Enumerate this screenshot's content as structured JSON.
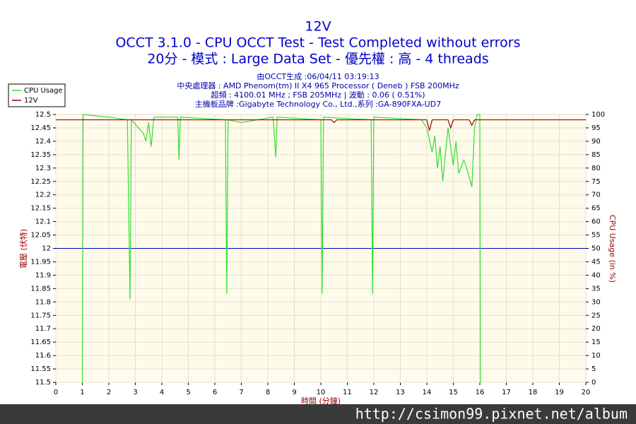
{
  "chart_data": {
    "type": "line",
    "title": "12V",
    "subtitle": [
      "OCCT 3.1.0 - CPU OCCT Test - Test Completed without errors",
      "20分 - 模式 : Large Data Set - 優先權 : 高 - 4 threads"
    ],
    "info": [
      "由OCCT生成 :06/04/11 03:19:13",
      "中央處理器 : AMD Phenom(tm) II X4 965 Processor ( Deneb ) FSB 200MHz",
      "超頻 : 4100.01 MHz ; FSB 205MHz | 波動 : 0.06 ( 0.51%)",
      "主機板品牌 :Gigabyte Technology Co., Ltd.,系列 :GA-890FXA-UD7"
    ],
    "ylabel": "電壓 (伏特)",
    "y2label": "CPU Usage (in %)",
    "xlabel": "時間 (分鐘)",
    "xlim": [
      0,
      20
    ],
    "xticks": [
      0,
      1,
      2,
      3,
      4,
      5,
      6,
      7,
      8,
      9,
      10,
      11,
      12,
      13,
      14,
      15,
      16,
      17,
      18,
      19,
      20
    ],
    "ylim": [
      11.5,
      12.5
    ],
    "yticks": [
      11.5,
      11.55,
      11.6,
      11.65,
      11.7,
      11.75,
      11.8,
      11.85,
      11.9,
      11.95,
      12,
      12.05,
      12.1,
      12.15,
      12.2,
      12.25,
      12.3,
      12.35,
      12.4,
      12.45,
      12.5
    ],
    "y2lim": [
      0,
      100
    ],
    "y2ticks": [
      0,
      5,
      10,
      15,
      20,
      25,
      30,
      35,
      40,
      45,
      50,
      55,
      60,
      65,
      70,
      75,
      80,
      85,
      90,
      95,
      100
    ],
    "reference_line": {
      "value": 12,
      "color": "#0000cc"
    },
    "grid": true,
    "legend": "top-left",
    "series": [
      {
        "name": "CPU Usage",
        "color": "#33dd33",
        "axis": "y2",
        "x": [
          1.0,
          1.03,
          2.0,
          2.7,
          2.8,
          2.85,
          3.3,
          3.4,
          3.5,
          3.6,
          3.7,
          4.6,
          4.65,
          4.7,
          6.4,
          6.45,
          6.5,
          7.0,
          8.2,
          8.3,
          8.35,
          10.0,
          10.05,
          10.1,
          11.9,
          11.95,
          12.0,
          13.8,
          14.0,
          14.2,
          14.3,
          14.4,
          14.5,
          14.6,
          14.8,
          15.0,
          15.1,
          15.2,
          15.4,
          15.5,
          15.7,
          15.8,
          15.9,
          16.0,
          16.02
        ],
        "values": [
          0,
          100,
          99,
          98,
          31,
          98,
          93,
          90,
          97,
          88,
          99,
          99,
          83,
          99,
          98,
          33,
          98,
          97,
          99,
          84,
          99,
          98,
          33,
          99,
          98,
          33,
          99,
          98,
          95,
          86,
          92,
          80,
          88,
          75,
          95,
          81,
          90,
          78,
          83,
          80,
          73,
          95,
          100,
          100,
          0
        ]
      },
      {
        "name": "12V",
        "color": "#990000",
        "x": [
          0,
          10.4,
          10.5,
          10.6,
          14.0,
          14.1,
          14.2,
          14.8,
          14.9,
          15.0,
          15.6,
          15.7,
          15.8,
          20
        ],
        "values": [
          12.48,
          12.48,
          12.47,
          12.48,
          12.48,
          12.44,
          12.48,
          12.48,
          12.45,
          12.48,
          12.48,
          12.46,
          12.48,
          12.48
        ]
      }
    ],
    "watermark": "http://csimon99.pixnet.net/album"
  }
}
